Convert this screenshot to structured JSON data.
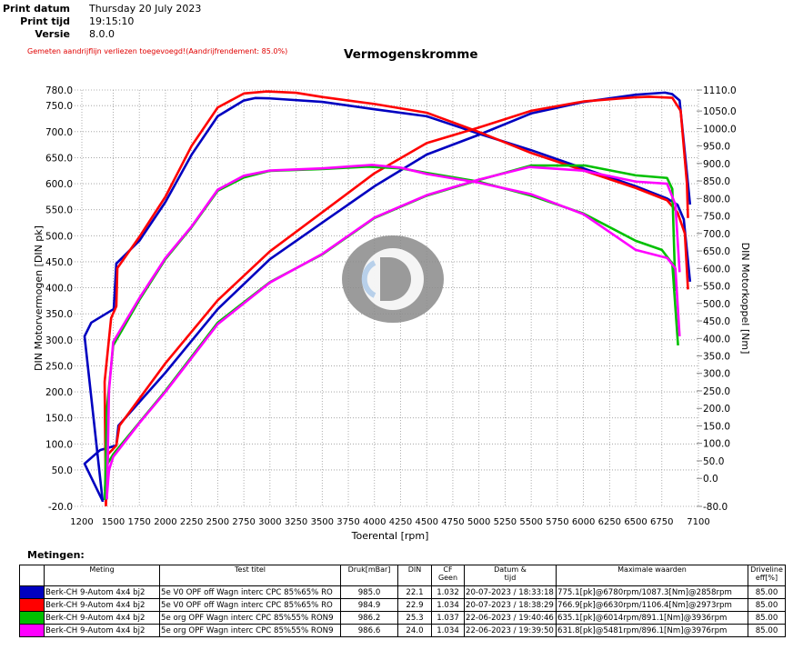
{
  "header": {
    "print_datum_label": "Print datum",
    "print_datum": "Thursday 20 July 2023",
    "print_tijd_label": "Print tijd",
    "print_tijd": "19:15:10",
    "versie_label": "Versie",
    "versie": "8.0.0",
    "note": "Gemeten aandrijflijn verliezen toegevoegd!(Aandrijfrendement: 85.0%)"
  },
  "chart_data": {
    "type": "line",
    "title": "Vermogenskromme",
    "xlabel": "Toerental [rpm]",
    "ylabel": "DIN Motorvermogen [DIN pk]",
    "y2label": "DIN Motorkoppel [Nm]",
    "xlim": [
      1200,
      7100
    ],
    "ylim": [
      -20,
      780
    ],
    "y2lim": [
      -80,
      1110
    ],
    "xticks": [
      "1200",
      "1500",
      "1750",
      "2000",
      "2250",
      "2500",
      "2750",
      "3000",
      "3250",
      "3500",
      "3750",
      "4000",
      "4250",
      "4500",
      "4750",
      "5000",
      "5250",
      "5500",
      "5750",
      "6000",
      "6250",
      "6500",
      "6750",
      "7100"
    ],
    "yticks": [
      "780.0",
      "750.0",
      "700.0",
      "650.0",
      "600.0",
      "550.0",
      "500.0",
      "450.0",
      "400.0",
      "350.0",
      "300.0",
      "250.0",
      "200.0",
      "150.0",
      "100.0",
      "50.0",
      "-20.0"
    ],
    "y2ticks": [
      "1110.0",
      "1050.0",
      "1000.0",
      "950.0",
      "900.0",
      "850.0",
      "800.0",
      "750.0",
      "700.0",
      "650.0",
      "600.0",
      "550.0",
      "500.0",
      "450.0",
      "400.0",
      "350.0",
      "300.0",
      "250.0",
      "200.0",
      "150.0",
      "100.0",
      "50.0",
      "0.0",
      "-80.0"
    ],
    "grid": true,
    "series": [
      {
        "color": "#0000c0",
        "axis": "left",
        "points": [
          [
            1400,
            -10
          ],
          [
            1226,
            62
          ],
          [
            1374,
            88
          ],
          [
            1530,
            97
          ],
          [
            1550,
            135
          ],
          [
            2000,
            237
          ],
          [
            2500,
            359
          ],
          [
            3000,
            455
          ],
          [
            3500,
            525
          ],
          [
            4000,
            595
          ],
          [
            4500,
            656
          ],
          [
            5000,
            694
          ],
          [
            5500,
            735
          ],
          [
            6000,
            757
          ],
          [
            6500,
            771
          ],
          [
            6780,
            775
          ],
          [
            6850,
            772
          ],
          [
            6920,
            760
          ],
          [
            7000,
            600
          ],
          [
            7020,
            560
          ]
        ]
      },
      {
        "color": "#0000c0",
        "axis": "right",
        "points": [
          [
            1400,
            -67
          ],
          [
            1226,
            406
          ],
          [
            1290,
            445
          ],
          [
            1505,
            484
          ],
          [
            1530,
            614
          ],
          [
            1750,
            679
          ],
          [
            2000,
            790
          ],
          [
            2250,
            925
          ],
          [
            2500,
            1035
          ],
          [
            2750,
            1080
          ],
          [
            2858,
            1087
          ],
          [
            3000,
            1086
          ],
          [
            3500,
            1076
          ],
          [
            4000,
            1055
          ],
          [
            4500,
            1035
          ],
          [
            5000,
            985
          ],
          [
            5500,
            938
          ],
          [
            6000,
            886
          ],
          [
            6500,
            835
          ],
          [
            6800,
            800
          ],
          [
            6900,
            782
          ],
          [
            6960,
            740
          ],
          [
            7020,
            562
          ]
        ]
      },
      {
        "color": "#ff0000",
        "axis": "left",
        "points": [
          [
            1430,
            -20
          ],
          [
            1450,
            80
          ],
          [
            1530,
            97
          ],
          [
            1560,
            135
          ],
          [
            2000,
            255
          ],
          [
            2500,
            376
          ],
          [
            3000,
            470
          ],
          [
            3500,
            545
          ],
          [
            4000,
            620
          ],
          [
            4500,
            678
          ],
          [
            5000,
            708
          ],
          [
            5500,
            740
          ],
          [
            6000,
            758
          ],
          [
            6500,
            766
          ],
          [
            6630,
            767
          ],
          [
            6850,
            765
          ],
          [
            6930,
            740
          ],
          [
            6990,
            600
          ],
          [
            7000,
            534
          ]
        ]
      },
      {
        "color": "#ff0000",
        "axis": "right",
        "points": [
          [
            1430,
            -75
          ],
          [
            1418,
            276
          ],
          [
            1480,
            458
          ],
          [
            1530,
            492
          ],
          [
            1540,
            601
          ],
          [
            1750,
            690
          ],
          [
            2000,
            805
          ],
          [
            2250,
            950
          ],
          [
            2500,
            1060
          ],
          [
            2750,
            1100
          ],
          [
            2973,
            1106
          ],
          [
            3250,
            1102
          ],
          [
            3500,
            1090
          ],
          [
            4000,
            1070
          ],
          [
            4500,
            1045
          ],
          [
            5000,
            990
          ],
          [
            5500,
            930
          ],
          [
            6000,
            880
          ],
          [
            6500,
            830
          ],
          [
            6800,
            795
          ],
          [
            6900,
            760
          ],
          [
            6970,
            700
          ],
          [
            7000,
            540
          ]
        ]
      },
      {
        "color": "#00c000",
        "axis": "left",
        "points": [
          [
            1420,
            10
          ],
          [
            1440,
            60
          ],
          [
            1500,
            80
          ],
          [
            1750,
            141
          ],
          [
            2000,
            202
          ],
          [
            2500,
            333
          ],
          [
            3000,
            411
          ],
          [
            3500,
            464
          ],
          [
            4000,
            534
          ],
          [
            4500,
            577
          ],
          [
            5000,
            607
          ],
          [
            5500,
            635
          ],
          [
            6014,
            635
          ],
          [
            6500,
            616
          ],
          [
            6800,
            611
          ],
          [
            6850,
            590
          ],
          [
            6880,
            394
          ]
        ]
      },
      {
        "color": "#00c000",
        "axis": "right",
        "points": [
          [
            1420,
            -62
          ],
          [
            1440,
            200
          ],
          [
            1500,
            380
          ],
          [
            1750,
            510
          ],
          [
            2000,
            627
          ],
          [
            2250,
            718
          ],
          [
            2500,
            822
          ],
          [
            2750,
            860
          ],
          [
            3000,
            879
          ],
          [
            3500,
            884
          ],
          [
            3936,
            891
          ],
          [
            4250,
            886
          ],
          [
            4500,
            873
          ],
          [
            5000,
            848
          ],
          [
            5500,
            808
          ],
          [
            6000,
            757
          ],
          [
            6500,
            679
          ],
          [
            6750,
            653
          ],
          [
            6850,
            614
          ],
          [
            6905,
            380
          ]
        ]
      },
      {
        "color": "#ff00ff",
        "axis": "left",
        "points": [
          [
            1440,
            0
          ],
          [
            1460,
            50
          ],
          [
            1500,
            75
          ],
          [
            1750,
            140
          ],
          [
            2000,
            200
          ],
          [
            2500,
            330
          ],
          [
            3000,
            410
          ],
          [
            3500,
            465
          ],
          [
            4000,
            535
          ],
          [
            4500,
            578
          ],
          [
            5000,
            608
          ],
          [
            5481,
            632
          ],
          [
            6000,
            625
          ],
          [
            6500,
            604
          ],
          [
            6800,
            600
          ],
          [
            6880,
            560
          ],
          [
            6920,
            430
          ]
        ]
      },
      {
        "color": "#ff00ff",
        "axis": "right",
        "points": [
          [
            1440,
            -60
          ],
          [
            1460,
            250
          ],
          [
            1500,
            390
          ],
          [
            1750,
            515
          ],
          [
            2000,
            630
          ],
          [
            2250,
            720
          ],
          [
            2500,
            825
          ],
          [
            2750,
            865
          ],
          [
            3000,
            880
          ],
          [
            3500,
            886
          ],
          [
            3976,
            896
          ],
          [
            4250,
            888
          ],
          [
            4500,
            870
          ],
          [
            5000,
            845
          ],
          [
            5500,
            812
          ],
          [
            6000,
            755
          ],
          [
            6500,
            653
          ],
          [
            6800,
            630
          ],
          [
            6880,
            600
          ],
          [
            6920,
            406
          ]
        ]
      }
    ]
  },
  "table": {
    "title": "Metingen:",
    "headers": [
      "",
      "Meting",
      "Test titel",
      "Druk[mBar]",
      "DIN",
      "CF\nGeen",
      "Datum &\ntijd",
      "Maximale waarden",
      "Driveline\neff[%]"
    ],
    "rows": [
      {
        "color": "#0000c0",
        "meting": "Berk-CH  9-Autom 4x4 bj2",
        "titel": "5e V0 OPF off Wagn interc CPC 85%65% RO",
        "druk": "985.0",
        "din": "22.1",
        "cf": "1.032",
        "datum": "20-07-2023 / 18:33:18",
        "max": "775.1[pk]@6780rpm/1087.3[Nm]@2858rpm",
        "eff": "85.00"
      },
      {
        "color": "#ff0000",
        "meting": "Berk-CH  9-Autom 4x4 bj2",
        "titel": "5e V0 OPF off Wagn interc CPC 85%65% RO",
        "druk": "984.9",
        "din": "22.9",
        "cf": "1.034",
        "datum": "20-07-2023 / 18:38:29",
        "max": "766.9[pk]@6630rpm/1106.4[Nm]@2973rpm",
        "eff": "85.00"
      },
      {
        "color": "#00c000",
        "meting": "Berk-CH  9-Autom 4x4 bj2",
        "titel": "5e org OPF Wagn interc CPC 85%55% RON9",
        "druk": "986.2",
        "din": "25.3",
        "cf": "1.037",
        "datum": "22-06-2023 / 19:40:46",
        "max": "635.1[pk]@6014rpm/891.1[Nm]@3936rpm",
        "eff": "85.00"
      },
      {
        "color": "#ff00ff",
        "meting": "Berk-CH  9-Autom 4x4 bj2",
        "titel": "5e org OPF Wagn interc CPC 85%55% RON9",
        "druk": "986.6",
        "din": "24.0",
        "cf": "1.034",
        "datum": "22-06-2023 / 19:39:50",
        "max": "631.8[pk]@5481rpm/896.1[Nm]@3976rpm",
        "eff": "85.00"
      }
    ]
  }
}
